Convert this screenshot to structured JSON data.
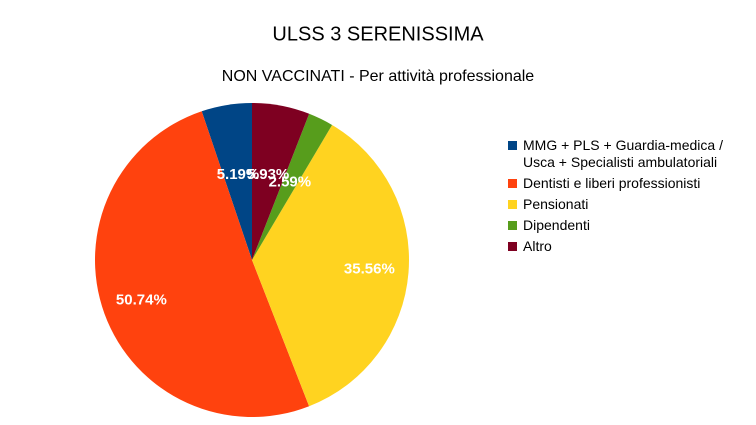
{
  "chart_data": {
    "type": "pie",
    "title": "ULSS 3 SERENISSIMA",
    "subtitle": "NON VACCINATI - Per attività professionale",
    "categories": [
      "MMG + PLS + Guardia-medica / Usca + Specialisti ambulatoriali",
      "Dentisti e liberi professionisti",
      "Pensionati",
      "Dipendenti",
      "Altro"
    ],
    "values": [
      5.19,
      50.74,
      35.56,
      2.59,
      5.93
    ],
    "value_labels": [
      "5.19%",
      "50.74%",
      "35.56%",
      "2.59%",
      "5.93%"
    ],
    "colors": [
      "#004586",
      "#ff420e",
      "#ffd320",
      "#579d1c",
      "#7e0021"
    ],
    "legend": "right"
  }
}
